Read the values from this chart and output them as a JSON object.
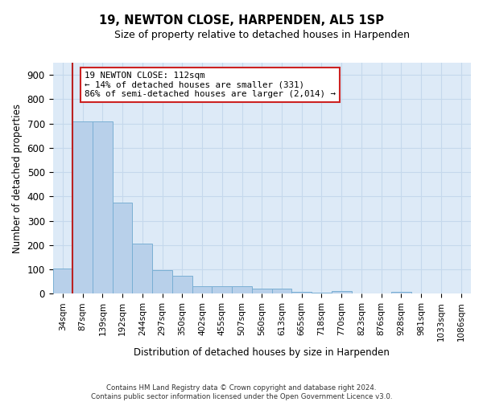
{
  "title": "19, NEWTON CLOSE, HARPENDEN, AL5 1SP",
  "subtitle": "Size of property relative to detached houses in Harpenden",
  "xlabel": "Distribution of detached houses by size in Harpenden",
  "ylabel": "Number of detached properties",
  "categories": [
    "34sqm",
    "87sqm",
    "139sqm",
    "192sqm",
    "244sqm",
    "297sqm",
    "350sqm",
    "402sqm",
    "455sqm",
    "507sqm",
    "560sqm",
    "613sqm",
    "665sqm",
    "718sqm",
    "770sqm",
    "823sqm",
    "876sqm",
    "928sqm",
    "981sqm",
    "1033sqm",
    "1086sqm"
  ],
  "values": [
    103,
    710,
    710,
    375,
    207,
    97,
    75,
    32,
    32,
    32,
    20,
    22,
    8,
    5,
    10,
    0,
    0,
    8,
    0,
    0,
    0
  ],
  "bar_color": "#b8d0ea",
  "bar_edge_color": "#7aafd4",
  "vline_color": "#bb2222",
  "annotation_text": "19 NEWTON CLOSE: 112sqm\n← 14% of detached houses are smaller (331)\n86% of semi-detached houses are larger (2,014) →",
  "annotation_box_color": "#ffffff",
  "annotation_box_edge": "#cc2222",
  "ylim": [
    0,
    950
  ],
  "yticks": [
    0,
    100,
    200,
    300,
    400,
    500,
    600,
    700,
    800,
    900
  ],
  "grid_color": "#c5d8ec",
  "bg_color": "#ddeaf7",
  "footer": "Contains HM Land Registry data © Crown copyright and database right 2024.\nContains public sector information licensed under the Open Government Licence v3.0."
}
